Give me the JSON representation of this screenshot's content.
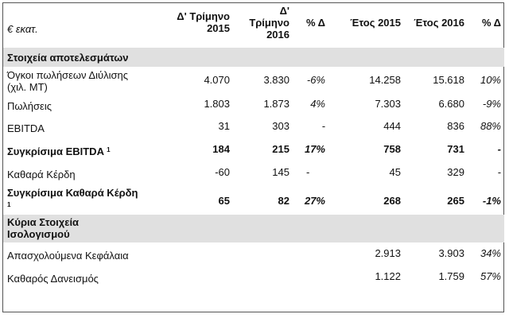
{
  "header": {
    "unit": "€ εκατ.",
    "q4_2015": [
      "Δ' Τρίμηνο",
      "2015"
    ],
    "q4_2016": [
      "Δ'",
      "Τρίμηνο",
      "2016"
    ],
    "pct_q": "% Δ",
    "year_2015": "Έτος 2015",
    "year_2016": "Έτος 2016",
    "pct_y": "% Δ"
  },
  "sections": [
    {
      "title": "Στοιχεία αποτελεσμάτων"
    },
    {
      "title": [
        "Κύρια Στοιχεία",
        "Ισολογισμού"
      ]
    }
  ],
  "rows": [
    {
      "label": [
        "Όγκοι πωλήσεων Διύλισης",
        "(χιλ. ΜΤ)"
      ],
      "q15": "4.070",
      "q16": "3.830",
      "pq": "-6%",
      "y15": "14.258",
      "y16": "15.618",
      "py": "10%"
    },
    {
      "label": "Πωλήσεις",
      "q15": "1.803",
      "q16": "1.873",
      "pq": "4%",
      "y15": "7.303",
      "y16": "6.680",
      "py": "-9%"
    },
    {
      "label": "EBITDA",
      "q15": "31",
      "q16": "303",
      "pq": "-",
      "y15": "444",
      "y16": "836",
      "py": "88%"
    },
    {
      "label": "Συγκρίσιμα EBITDA",
      "sup": "1",
      "q15": "184",
      "q16": "215",
      "pq": "17%",
      "y15": "758",
      "y16": "731",
      "py": "-"
    },
    {
      "label": "Καθαρά Κέρδη",
      "q15": "-60",
      "q16": "145",
      "pq": "-",
      "y15": "45",
      "y16": "329",
      "py": "-"
    },
    {
      "label": "Συγκρίσιμα Καθαρά Κέρδη",
      "sup": "1",
      "q15": "65",
      "q16": "82",
      "pq": "27%",
      "y15": "268",
      "y16": "265",
      "py": "-1%"
    },
    {
      "label": "Απασχολούμενα Κεφάλαια",
      "y15": "2.913",
      "y16": "3.903",
      "py": "34%"
    },
    {
      "label": "Καθαρός Δανεισμός",
      "y15": "1.122",
      "y16": "1.759",
      "py": "57%"
    }
  ]
}
